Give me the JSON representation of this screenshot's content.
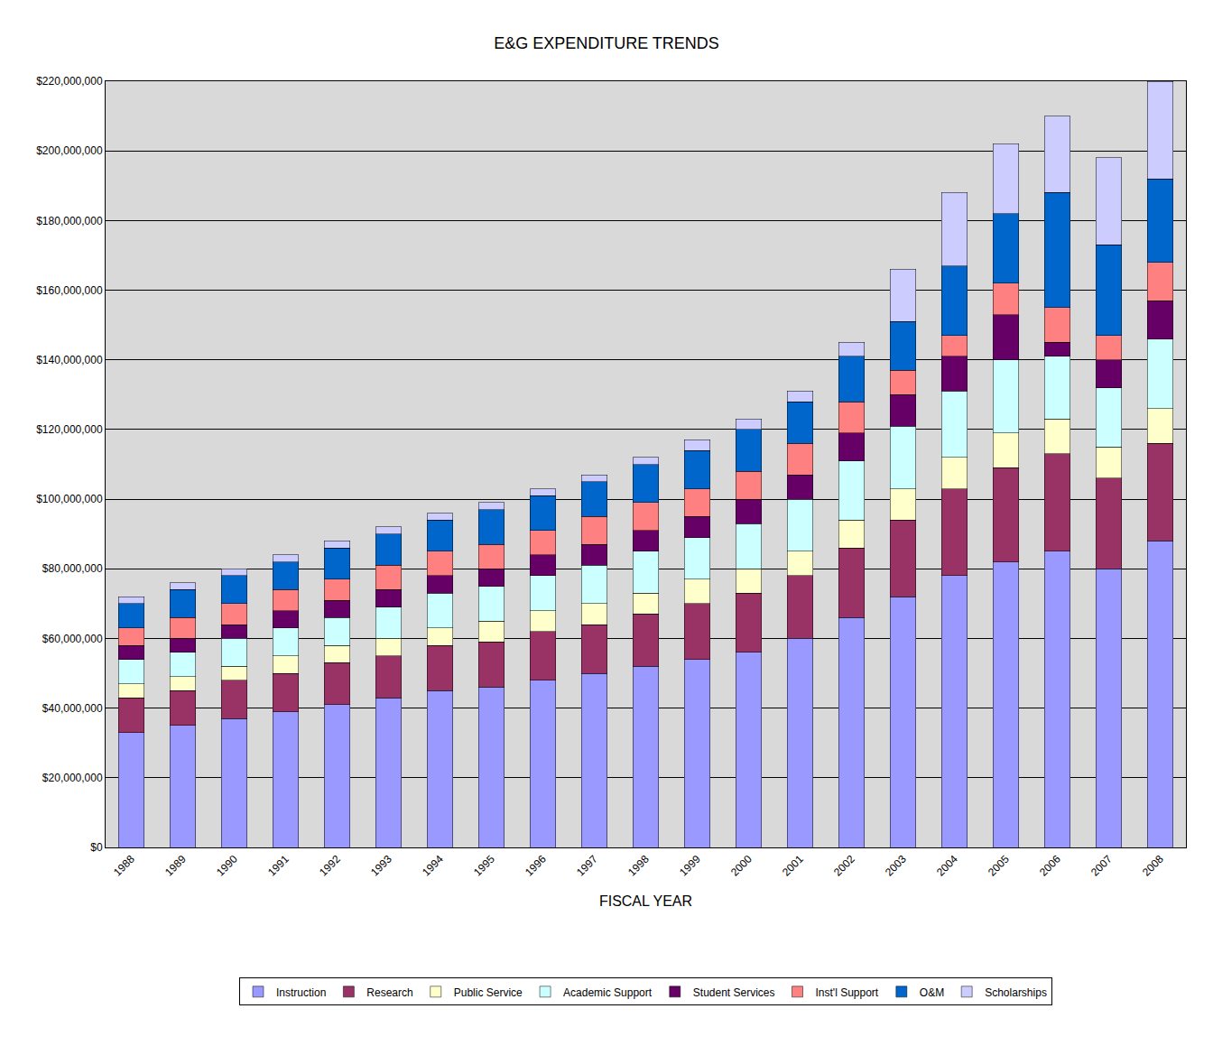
{
  "chart_data": {
    "type": "bar",
    "title": "E&G EXPENDITURE TRENDS",
    "x_label": "FISCAL YEAR",
    "stacked": true,
    "grid": true,
    "legend": "bottom",
    "categories": [
      "1988",
      "1989",
      "1990",
      "1991",
      "1992",
      "1993",
      "1994",
      "1995",
      "1996",
      "1997",
      "1998",
      "1999",
      "2000",
      "2001",
      "2002",
      "2003",
      "2004",
      "2005",
      "2006",
      "2007",
      "2008"
    ],
    "series": [
      {
        "name": "Instruction",
        "color": "#9999FF",
        "values": [
          33000000,
          35000000,
          37000000,
          39000000,
          41000000,
          43000000,
          45000000,
          46000000,
          48000000,
          50000000,
          52000000,
          54000000,
          56000000,
          60000000,
          66000000,
          72000000,
          78000000,
          82000000,
          85000000,
          80000000,
          88000000
        ]
      },
      {
        "name": "Research",
        "color": "#993366",
        "values": [
          10000000,
          10000000,
          11000000,
          11000000,
          12000000,
          12000000,
          13000000,
          13000000,
          14000000,
          14000000,
          15000000,
          16000000,
          17000000,
          18000000,
          20000000,
          22000000,
          25000000,
          27000000,
          28000000,
          26000000,
          28000000
        ]
      },
      {
        "name": "Public Service",
        "color": "#FFFFCC",
        "values": [
          4000000,
          4000000,
          4000000,
          5000000,
          5000000,
          5000000,
          5000000,
          6000000,
          6000000,
          6000000,
          6000000,
          7000000,
          7000000,
          7000000,
          8000000,
          9000000,
          9000000,
          10000000,
          10000000,
          9000000,
          10000000
        ]
      },
      {
        "name": "Academic Support",
        "color": "#CCFFFF",
        "values": [
          7000000,
          7000000,
          8000000,
          8000000,
          8000000,
          9000000,
          10000000,
          10000000,
          10000000,
          11000000,
          12000000,
          12000000,
          13000000,
          15000000,
          17000000,
          18000000,
          19000000,
          21000000,
          18000000,
          17000000,
          20000000
        ]
      },
      {
        "name": "Student Services",
        "color": "#660066",
        "values": [
          4000000,
          4000000,
          4000000,
          5000000,
          5000000,
          5000000,
          5000000,
          5000000,
          6000000,
          6000000,
          6000000,
          6000000,
          7000000,
          7000000,
          8000000,
          9000000,
          10000000,
          13000000,
          4000000,
          8000000,
          11000000
        ]
      },
      {
        "name": "Inst'l Support",
        "color": "#FF8080",
        "values": [
          5000000,
          6000000,
          6000000,
          6000000,
          6000000,
          7000000,
          7000000,
          7000000,
          7000000,
          8000000,
          8000000,
          8000000,
          8000000,
          9000000,
          9000000,
          7000000,
          6000000,
          9000000,
          10000000,
          7000000,
          11000000
        ]
      },
      {
        "name": "O&M",
        "color": "#0066CC",
        "values": [
          7000000,
          8000000,
          8000000,
          8000000,
          9000000,
          9000000,
          9000000,
          10000000,
          10000000,
          10000000,
          11000000,
          11000000,
          12000000,
          12000000,
          13000000,
          14000000,
          20000000,
          20000000,
          33000000,
          26000000,
          24000000
        ]
      },
      {
        "name": "Scholarships",
        "color": "#CCCCFF",
        "values": [
          2000000,
          2000000,
          2000000,
          2000000,
          2000000,
          2000000,
          2000000,
          2000000,
          2000000,
          2000000,
          2000000,
          3000000,
          3000000,
          3000000,
          4000000,
          15000000,
          21000000,
          20000000,
          22000000,
          25000000,
          28000000
        ]
      }
    ],
    "ylim": [
      0,
      220000000
    ],
    "yticks": [
      {
        "value": 0,
        "label": "$0"
      },
      {
        "value": 20000000,
        "label": "$20,000,000"
      },
      {
        "value": 40000000,
        "label": "$40,000,000"
      },
      {
        "value": 60000000,
        "label": "$60,000,000"
      },
      {
        "value": 80000000,
        "label": "$80,000,000"
      },
      {
        "value": 100000000,
        "label": "$100,000,000"
      },
      {
        "value": 120000000,
        "label": "$120,000,000"
      },
      {
        "value": 140000000,
        "label": "$140,000,000"
      },
      {
        "value": 160000000,
        "label": "$160,000,000"
      },
      {
        "value": 180000000,
        "label": "$180,000,000"
      },
      {
        "value": 200000000,
        "label": "$200,000,000"
      },
      {
        "value": 220000000,
        "label": "$220,000,000"
      }
    ]
  }
}
